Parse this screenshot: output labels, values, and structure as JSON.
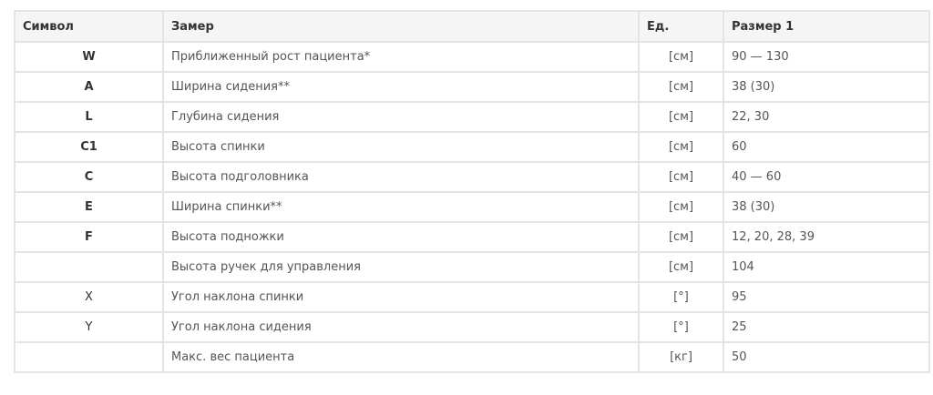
{
  "headers": {
    "symbol": "Символ",
    "measure": "Замер",
    "unit": "Ед.",
    "size": "Размер 1"
  },
  "rows": [
    {
      "symbol": "W",
      "bold": true,
      "measure": "Приближенный рост пациента*",
      "unit": "[см]",
      "size": "90 — 130"
    },
    {
      "symbol": "A",
      "bold": true,
      "measure": "Ширина сидения**",
      "unit": "[см]",
      "size": "38 (30)"
    },
    {
      "symbol": "L",
      "bold": true,
      "measure": "Глубина сидения",
      "unit": "[см]",
      "size": "22, 30"
    },
    {
      "symbol": "C1",
      "bold": true,
      "measure": "Высота спинки",
      "unit": "[см]",
      "size": "60"
    },
    {
      "symbol": "C",
      "bold": true,
      "measure": "Высота подголовника",
      "unit": "[см]",
      "size": "40 — 60"
    },
    {
      "symbol": "E",
      "bold": true,
      "measure": "Ширина спинки**",
      "unit": "[см]",
      "size": "38 (30)"
    },
    {
      "symbol": "F",
      "bold": true,
      "measure": "Высота подножки",
      "unit": "[см]",
      "size": "12, 20, 28, 39"
    },
    {
      "symbol": "",
      "bold": false,
      "measure": "Высота ручек для управления",
      "unit": "[см]",
      "size": "104"
    },
    {
      "symbol": "X",
      "bold": false,
      "measure": "Угол наклона спинки",
      "unit": "[°]",
      "size": "95"
    },
    {
      "symbol": "Y",
      "bold": false,
      "measure": "Угол наклона сидения",
      "unit": "[°]",
      "size": "25"
    },
    {
      "symbol": "",
      "bold": false,
      "measure": "Макс. вес пациента",
      "unit": "[кг]",
      "size": "50"
    }
  ]
}
